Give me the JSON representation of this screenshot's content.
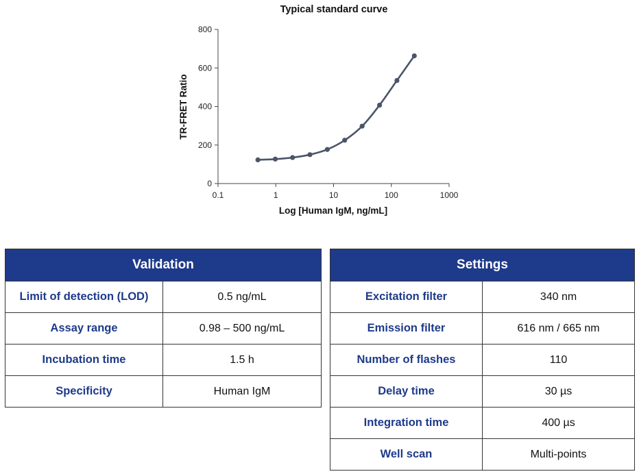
{
  "chart_data": {
    "type": "line",
    "title": "Typical standard curve",
    "xlabel": "Log [Human IgM, ng/mL]",
    "ylabel": "TR-FRET Ratio",
    "xscale": "log",
    "xlim": [
      0.1,
      1000
    ],
    "ylim": [
      0,
      800
    ],
    "x_ticks": [
      "0.1",
      "1",
      "10",
      "100",
      "1000"
    ],
    "y_ticks": [
      "0",
      "200",
      "400",
      "600",
      "800"
    ],
    "grid": false,
    "line_color": "#4a5568",
    "series": [
      {
        "x": [
          0.49,
          0.98,
          1.95,
          3.9,
          7.8,
          15.6,
          31.25,
          62.5,
          125,
          250
        ],
        "y": [
          123,
          127,
          135,
          150,
          177,
          225,
          298,
          407,
          535,
          663
        ]
      }
    ]
  },
  "validation": {
    "header": "Validation",
    "rows": [
      {
        "label": "Limit of detection (LOD)",
        "value": "0.5 ng/mL"
      },
      {
        "label": "Assay range",
        "value": "0.98 – 500 ng/mL"
      },
      {
        "label": "Incubation time",
        "value": "1.5 h"
      },
      {
        "label": "Specificity",
        "value": "Human IgM"
      }
    ]
  },
  "settings": {
    "header": "Settings",
    "rows": [
      {
        "label": "Excitation filter",
        "value": "340 nm"
      },
      {
        "label": "Emission filter",
        "value": "616 nm / 665 nm"
      },
      {
        "label": "Number of flashes",
        "value": "110"
      },
      {
        "label": "Delay time",
        "value": "30 µs"
      },
      {
        "label": "Integration time",
        "value": "400 µs"
      },
      {
        "label": "Well scan",
        "value": "Multi-points"
      }
    ]
  },
  "colors": {
    "header_bg": "#1e3a8a",
    "label_text": "#1e3a8a",
    "curve": "#4a5568"
  }
}
